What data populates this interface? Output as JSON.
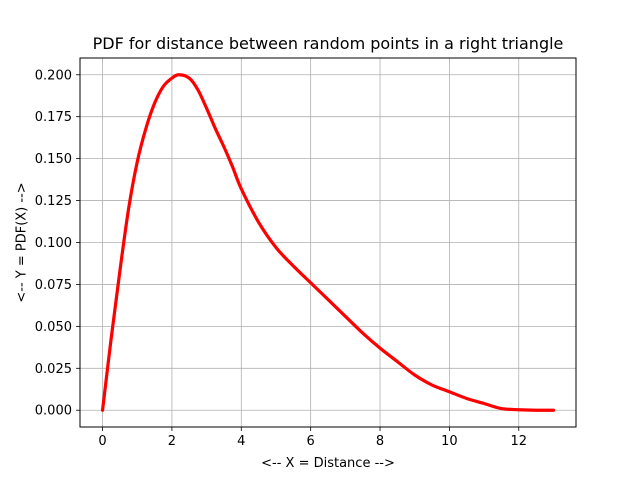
{
  "chart_data": {
    "type": "line",
    "title": "PDF for distance between random points in a right triangle",
    "xlabel": "<-- X = Distance -->",
    "ylabel": "<-- Y = PDF(X) -->",
    "xlim": [
      -0.65,
      13.65
    ],
    "ylim": [
      -0.01,
      0.21
    ],
    "xticks": [
      0,
      2,
      4,
      6,
      8,
      10,
      12
    ],
    "yticks": [
      0.0,
      0.025,
      0.05,
      0.075,
      0.1,
      0.125,
      0.15,
      0.175,
      0.2
    ],
    "xtick_labels": [
      "0",
      "2",
      "4",
      "6",
      "8",
      "10",
      "12"
    ],
    "ytick_labels": [
      "0.000",
      "0.025",
      "0.050",
      "0.075",
      "0.100",
      "0.125",
      "0.150",
      "0.175",
      "0.200"
    ],
    "grid": true,
    "series": [
      {
        "color": "#ff0000",
        "x": [
          0,
          0.25,
          0.5,
          0.75,
          1.0,
          1.25,
          1.5,
          1.75,
          2.0,
          2.2,
          2.5,
          2.75,
          3.0,
          3.25,
          3.5,
          3.75,
          4.0,
          4.5,
          5.0,
          5.5,
          6.0,
          6.5,
          7.0,
          7.5,
          8.0,
          8.5,
          9.0,
          9.5,
          10.0,
          10.5,
          11.0,
          11.5,
          12.0,
          12.5,
          13.0
        ],
        "y": [
          0.0,
          0.043,
          0.083,
          0.12,
          0.148,
          0.168,
          0.183,
          0.193,
          0.198,
          0.2,
          0.198,
          0.191,
          0.18,
          0.168,
          0.157,
          0.145,
          0.132,
          0.112,
          0.097,
          0.086,
          0.076,
          0.066,
          0.056,
          0.046,
          0.037,
          0.029,
          0.021,
          0.015,
          0.011,
          0.007,
          0.004,
          0.001,
          0.0003,
          0.0,
          0.0
        ]
      }
    ]
  }
}
